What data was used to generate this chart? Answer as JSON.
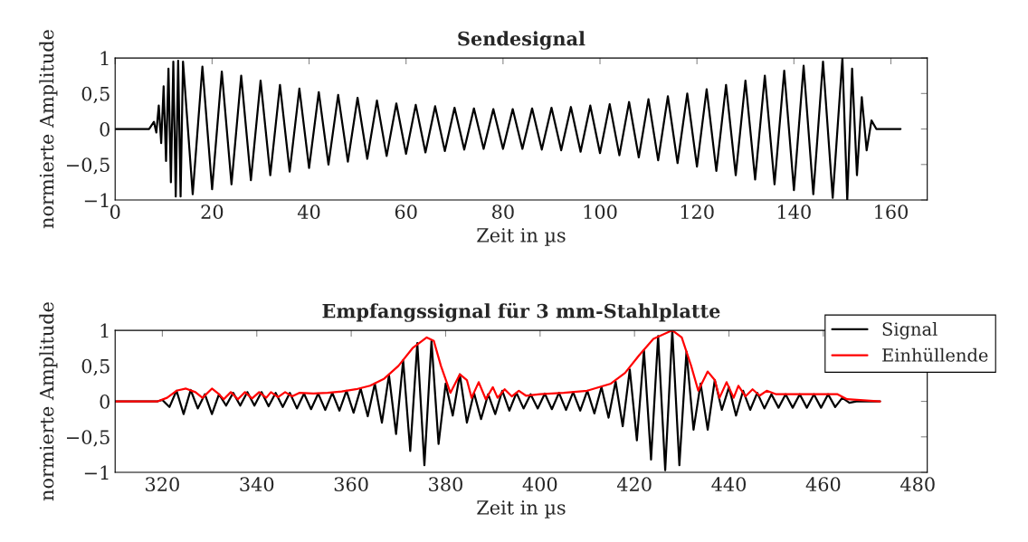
{
  "chart_data": [
    {
      "type": "line",
      "title": "Sendesignal",
      "xlabel": "Zeit in µs",
      "ylabel": "normierte Amplitude",
      "xlim": [
        0,
        167.5
      ],
      "ylim": [
        -1,
        1
      ],
      "xticks": [
        0,
        20,
        40,
        60,
        80,
        100,
        120,
        140,
        160
      ],
      "yticks": [
        {
          "value": -1,
          "label": "−1"
        },
        {
          "value": -0.5,
          "label": "−0,5"
        },
        0,
        {
          "value": 0.5,
          "label": "0,5"
        },
        1
      ],
      "grid": false,
      "legend": false,
      "series": [
        {
          "color": "#000000",
          "x": [
            0,
            7,
            8,
            8.5,
            9,
            9.5,
            10,
            10.5,
            11,
            11.5,
            12,
            12.5,
            13,
            13.5,
            14,
            16,
            18,
            20,
            22,
            24,
            26,
            28,
            30,
            32,
            34,
            36,
            38,
            40,
            42,
            44,
            46,
            48,
            50,
            52,
            54,
            56,
            58,
            60,
            62,
            64,
            66,
            68,
            70,
            72,
            74,
            76,
            78,
            80,
            82,
            84,
            86,
            88,
            90,
            92,
            94,
            96,
            98,
            100,
            102,
            104,
            106,
            108,
            110,
            112,
            114,
            116,
            118,
            120,
            122,
            124,
            126,
            128,
            130,
            132,
            134,
            136,
            138,
            140,
            142,
            144,
            146,
            148,
            150,
            151,
            152,
            153,
            154,
            155,
            156,
            157,
            162
          ],
          "values": [
            0,
            0,
            0.1,
            -0.05,
            0.33,
            -0.2,
            0.6,
            -0.45,
            0.85,
            -0.75,
            0.95,
            -0.95,
            0.96,
            -0.95,
            0.95,
            -0.92,
            0.88,
            -0.85,
            0.81,
            -0.78,
            0.75,
            -0.72,
            0.68,
            -0.65,
            0.62,
            -0.6,
            0.57,
            -0.55,
            0.52,
            -0.5,
            0.48,
            -0.46,
            0.44,
            -0.42,
            0.4,
            -0.38,
            0.36,
            -0.35,
            0.34,
            -0.33,
            0.32,
            -0.31,
            0.3,
            -0.29,
            0.29,
            -0.28,
            0.28,
            -0.28,
            0.28,
            -0.28,
            0.29,
            -0.29,
            0.3,
            -0.3,
            0.31,
            -0.32,
            0.33,
            -0.34,
            0.35,
            -0.37,
            0.38,
            -0.4,
            0.42,
            -0.44,
            0.46,
            -0.48,
            0.5,
            -0.53,
            0.56,
            -0.59,
            0.62,
            -0.65,
            0.68,
            -0.71,
            0.75,
            -0.78,
            0.82,
            -0.86,
            0.89,
            -0.92,
            0.95,
            -0.97,
            1.0,
            -1.0,
            0.85,
            -0.65,
            0.45,
            -0.3,
            0.12,
            0,
            0
          ]
        }
      ]
    },
    {
      "type": "line",
      "title": "Empfangssignal für 3 mm-Stahlplatte",
      "xlabel": "Zeit in µs",
      "ylabel": "normierte Amplitude",
      "xlim": [
        310,
        482
      ],
      "ylim": [
        -1,
        1
      ],
      "xticks": [
        320,
        340,
        360,
        380,
        400,
        420,
        440,
        460,
        480
      ],
      "yticks": [
        {
          "value": -1,
          "label": "−1"
        },
        {
          "value": -0.5,
          "label": "−0,5"
        },
        0,
        {
          "value": 0.5,
          "label": "0,5"
        },
        1
      ],
      "grid": false,
      "legend": "top right",
      "series": [
        {
          "name": "Signal",
          "color": "#000000",
          "x": [
            310,
            319,
            320,
            321.5,
            323,
            324.5,
            326,
            327.5,
            329,
            330.5,
            332,
            333.5,
            335,
            336.5,
            338,
            339.5,
            341,
            342.5,
            344,
            345.5,
            347,
            348.5,
            350,
            351.5,
            353,
            354.5,
            356,
            357.5,
            359,
            360.5,
            362,
            363.5,
            365,
            366.5,
            368,
            369.5,
            371,
            372.5,
            374,
            375.5,
            377,
            378.5,
            380,
            381.5,
            383,
            384.5,
            386,
            387.5,
            389,
            390.5,
            392,
            393.5,
            395,
            396.5,
            398,
            399.5,
            401,
            402.5,
            404,
            405.5,
            407,
            408.5,
            410,
            411.5,
            413,
            414.5,
            416,
            417.5,
            419,
            420.5,
            422,
            423.5,
            425,
            426.5,
            428,
            429.5,
            431,
            432.5,
            434,
            435.5,
            437,
            438.5,
            440,
            441.5,
            443,
            444.5,
            446,
            447.5,
            449,
            450.5,
            452,
            453.5,
            455,
            456.5,
            458,
            459.5,
            461,
            462.5,
            464,
            465.5,
            467,
            472
          ],
          "values": [
            0,
            0,
            0.02,
            -0.08,
            0.15,
            -0.18,
            0.16,
            -0.1,
            0.1,
            -0.18,
            0.1,
            -0.06,
            0.12,
            -0.06,
            0.13,
            -0.06,
            0.13,
            -0.07,
            0.12,
            -0.08,
            0.12,
            -0.1,
            0.11,
            -0.11,
            0.11,
            -0.12,
            0.12,
            -0.13,
            0.15,
            -0.16,
            0.18,
            -0.21,
            0.25,
            -0.3,
            0.37,
            -0.46,
            0.58,
            -0.7,
            0.82,
            -0.9,
            0.85,
            -0.6,
            0.25,
            -0.2,
            0.38,
            -0.3,
            0.12,
            -0.25,
            0.1,
            -0.18,
            0.15,
            -0.13,
            0.12,
            -0.1,
            0.1,
            -0.1,
            0.11,
            -0.11,
            0.12,
            -0.12,
            0.13,
            -0.13,
            0.15,
            -0.17,
            0.2,
            -0.23,
            0.28,
            -0.35,
            0.45,
            -0.55,
            0.72,
            -0.82,
            0.92,
            -0.97,
            1.0,
            -0.9,
            0.7,
            -0.4,
            0.25,
            -0.4,
            0.3,
            -0.12,
            0.2,
            -0.2,
            0.15,
            -0.12,
            0.12,
            -0.1,
            0.1,
            -0.09,
            0.1,
            -0.09,
            0.1,
            -0.09,
            0.1,
            -0.09,
            0.1,
            -0.08,
            0.05,
            -0.02,
            0,
            0
          ]
        },
        {
          "name": "Einhüllende",
          "color": "#ff0000",
          "x": [
            310,
            319,
            321,
            323,
            325,
            327,
            328.5,
            330.5,
            332,
            333,
            334.5,
            336,
            337.5,
            339,
            340.5,
            342,
            343,
            344.5,
            346,
            347.5,
            349,
            352,
            355,
            358,
            361,
            364,
            367,
            370,
            373,
            376,
            377.5,
            379,
            381,
            383,
            384.5,
            385.5,
            387,
            388.5,
            390,
            391,
            392.5,
            394,
            395.5,
            397,
            400,
            405,
            410,
            415,
            418,
            421,
            424,
            428,
            430,
            432,
            433.5,
            435.5,
            437,
            438,
            439.5,
            441,
            442,
            443.5,
            445,
            446.5,
            448,
            450,
            455,
            460,
            463,
            465,
            472
          ],
          "values": [
            0,
            0,
            0.05,
            0.15,
            0.18,
            0.13,
            0.05,
            0.18,
            0.1,
            0.03,
            0.13,
            0.03,
            0.13,
            0.04,
            0.13,
            0.05,
            0.13,
            0.06,
            0.13,
            0.07,
            0.12,
            0.11,
            0.12,
            0.14,
            0.17,
            0.22,
            0.32,
            0.5,
            0.75,
            0.9,
            0.85,
            0.5,
            0.12,
            0.38,
            0.3,
            0.05,
            0.27,
            0.03,
            0.2,
            0.05,
            0.17,
            0.07,
            0.15,
            0.08,
            0.1,
            0.12,
            0.15,
            0.25,
            0.4,
            0.65,
            0.88,
            1.0,
            0.9,
            0.5,
            0.15,
            0.42,
            0.3,
            0.05,
            0.27,
            0.05,
            0.22,
            0.07,
            0.17,
            0.08,
            0.15,
            0.1,
            0.1,
            0.1,
            0.1,
            0.03,
            0
          ]
        }
      ]
    }
  ]
}
